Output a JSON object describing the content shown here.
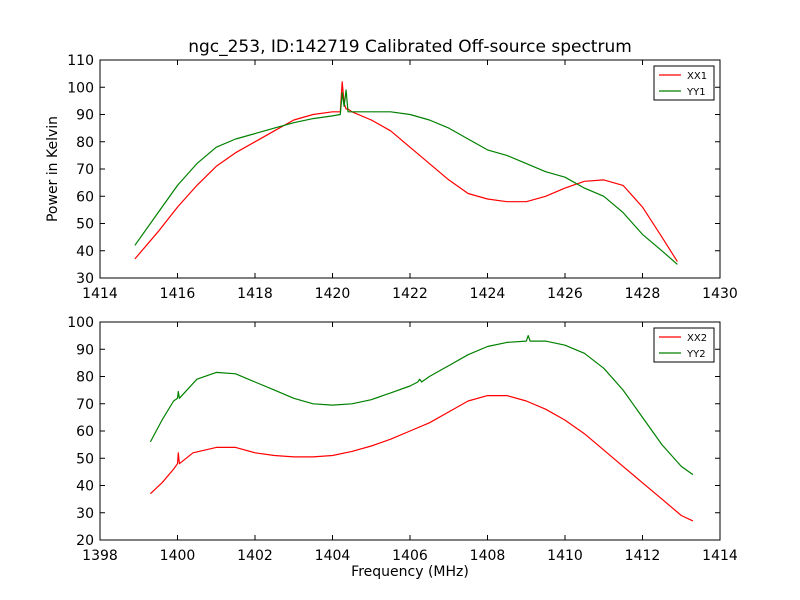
{
  "chart_data": [
    {
      "type": "line",
      "title": "ngc_253, ID:142719 Calibrated Off-source spectrum",
      "xlabel": "",
      "ylabel": "Power in Kelvin",
      "xlim": [
        1414,
        1430
      ],
      "ylim": [
        30,
        110
      ],
      "xticks": [
        1414,
        1416,
        1418,
        1420,
        1422,
        1424,
        1426,
        1428,
        1430
      ],
      "yticks": [
        30,
        40,
        50,
        60,
        70,
        80,
        90,
        100,
        110
      ],
      "legend_position": "top-right",
      "series": [
        {
          "name": "XX1",
          "color": "#ff0000",
          "x": [
            1414.9,
            1415.5,
            1416,
            1416.5,
            1417,
            1417.5,
            1418,
            1418.5,
            1419,
            1419.5,
            1420,
            1420.2,
            1420.25,
            1420.3,
            1420.35,
            1420.4,
            1420.5,
            1421,
            1421.5,
            1422,
            1422.5,
            1423,
            1423.5,
            1424,
            1424.5,
            1425,
            1425.5,
            1426,
            1426.5,
            1427,
            1427.5,
            1428,
            1428.5,
            1428.9
          ],
          "y": [
            37,
            47,
            56,
            64,
            71,
            76,
            80,
            84,
            88,
            90,
            91,
            91,
            102,
            94,
            92,
            92,
            91,
            88,
            84,
            78,
            72,
            66,
            61,
            59,
            58,
            58,
            60,
            63,
            65.5,
            66,
            64,
            56,
            45,
            36
          ]
        },
        {
          "name": "YY1",
          "color": "#008000",
          "x": [
            1414.9,
            1415.5,
            1416,
            1416.5,
            1417,
            1417.5,
            1418,
            1418.5,
            1419,
            1419.5,
            1420,
            1420.2,
            1420.25,
            1420.3,
            1420.35,
            1420.4,
            1420.5,
            1421,
            1421.5,
            1422,
            1422.5,
            1423,
            1423.5,
            1424,
            1424.5,
            1425,
            1425.5,
            1426,
            1426.5,
            1427,
            1427.5,
            1428,
            1428.5,
            1428.9
          ],
          "y": [
            42,
            54,
            64,
            72,
            78,
            81,
            83,
            85,
            87,
            88.5,
            89.5,
            90,
            98,
            93,
            99,
            91,
            91,
            91,
            91,
            90,
            88,
            85,
            81,
            77,
            75,
            72,
            69,
            67,
            63,
            60,
            54,
            46,
            40,
            35
          ]
        }
      ]
    },
    {
      "type": "line",
      "title": "",
      "xlabel": "Frequency (MHz)",
      "ylabel": "",
      "xlim": [
        1398,
        1414
      ],
      "ylim": [
        20,
        100
      ],
      "xticks": [
        1398,
        1400,
        1402,
        1404,
        1406,
        1408,
        1410,
        1412,
        1414
      ],
      "yticks": [
        20,
        30,
        40,
        50,
        60,
        70,
        80,
        90,
        100
      ],
      "legend_position": "top-right",
      "series": [
        {
          "name": "XX2",
          "color": "#ff0000",
          "x": [
            1399.3,
            1399.6,
            1399.9,
            1400,
            1400.02,
            1400.05,
            1400.4,
            1401,
            1401.5,
            1402,
            1402.5,
            1403,
            1403.5,
            1404,
            1404.5,
            1405,
            1405.5,
            1406,
            1406.5,
            1407,
            1407.5,
            1408,
            1408.5,
            1409,
            1409.5,
            1410,
            1410.5,
            1411,
            1411.5,
            1412,
            1412.5,
            1413,
            1413.3
          ],
          "y": [
            37,
            41,
            46,
            48,
            52,
            48,
            52,
            54,
            54,
            52,
            51,
            50.5,
            50.5,
            51,
            52.5,
            54.5,
            57,
            60,
            63,
            67,
            71,
            73,
            73,
            71,
            68,
            64,
            59,
            53,
            47,
            41,
            35,
            29,
            27
          ]
        },
        {
          "name": "YY2",
          "color": "#008000",
          "x": [
            1399.3,
            1399.6,
            1399.9,
            1400,
            1400.02,
            1400.05,
            1400.5,
            1401,
            1401.5,
            1402,
            1402.5,
            1403,
            1403.5,
            1404,
            1404.5,
            1405,
            1405.5,
            1406,
            1406.2,
            1406.25,
            1406.3,
            1406.5,
            1407,
            1407.5,
            1408,
            1408.5,
            1409,
            1409.05,
            1409.1,
            1409.5,
            1410,
            1410.5,
            1411,
            1411.5,
            1412,
            1412.5,
            1413,
            1413.3
          ],
          "y": [
            56,
            64,
            71,
            72,
            74.5,
            72,
            79,
            81.5,
            81,
            78,
            75,
            72,
            70,
            69.5,
            70,
            71.5,
            74,
            76.5,
            78,
            79,
            78,
            80,
            84,
            88,
            91,
            92.5,
            93,
            95,
            93,
            93,
            91.5,
            88.5,
            83,
            75,
            65,
            55,
            47,
            44
          ]
        }
      ]
    }
  ]
}
